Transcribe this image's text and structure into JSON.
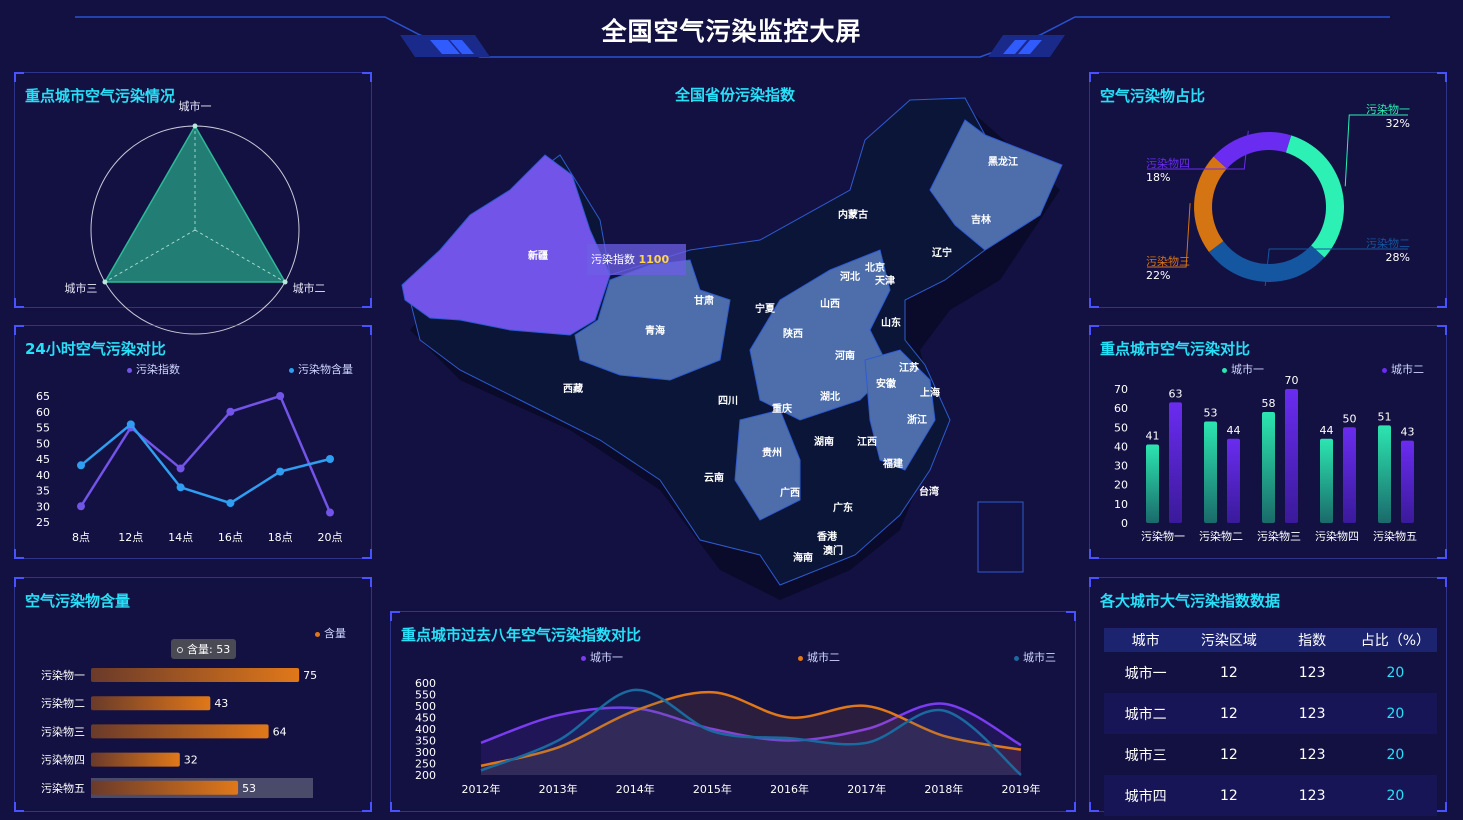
{
  "page_title": "全国空气污染监控大屏",
  "panels": {
    "radar_title": "重点城市空气污染情况",
    "hourly_title": "24小时空气污染对比",
    "content_title": "空气污染物含量",
    "map_title": "全国省份污染指数",
    "years_title": "重点城市过去八年空气污染指数对比",
    "donut_title": "空气污染物占比",
    "compare_title": "重点城市空气污染对比",
    "table_title": "各大城市大气污染指数数据"
  },
  "map": {
    "tooltip_label": "污染指数",
    "tooltip_value": "1100",
    "provinces": [
      "黑龙江",
      "吉林",
      "内蒙古",
      "辽宁",
      "北京",
      "天津",
      "河北",
      "山西",
      "山东",
      "宁夏",
      "甘肃",
      "新疆",
      "青海",
      "陕西",
      "河南",
      "江苏",
      "安徽",
      "上海",
      "西藏",
      "四川",
      "湖北",
      "浙江",
      "重庆",
      "湖南",
      "江西",
      "贵州",
      "福建",
      "云南",
      "广西",
      "广东",
      "台湾",
      "香港",
      "澳门",
      "海南"
    ]
  },
  "table": {
    "headers": [
      "城市",
      "污染区域",
      "指数",
      "占比（%）"
    ],
    "rows": [
      [
        "城市一",
        "12",
        "123",
        "20"
      ],
      [
        "城市二",
        "12",
        "123",
        "20"
      ],
      [
        "城市三",
        "12",
        "123",
        "20"
      ],
      [
        "城市四",
        "12",
        "123",
        "20"
      ]
    ]
  },
  "content_tooltip": "含量: 53",
  "colors": {
    "bg": "#131042",
    "accent": "#27e0f7",
    "map_highlight": "#7254e8",
    "map_mid": "#4d6eab",
    "map_dark": "#0b1538"
  },
  "chart_data": [
    {
      "id": "radar",
      "type": "radar",
      "indicators": [
        "城市一",
        "城市二",
        "城市三"
      ],
      "values": [
        100,
        100,
        100
      ]
    },
    {
      "id": "hourly",
      "type": "line",
      "categories": [
        "8点",
        "12点",
        "14点",
        "16点",
        "18点",
        "20点"
      ],
      "yticks": [
        25,
        30,
        35,
        40,
        45,
        50,
        55,
        60,
        65
      ],
      "ylim": [
        25,
        65
      ],
      "series": [
        {
          "name": "污染指数",
          "color": "#7254e8",
          "values": [
            30,
            55,
            42,
            60,
            65,
            28
          ]
        },
        {
          "name": "污染物含量",
          "color": "#2f9ef0",
          "values": [
            43,
            56,
            36,
            31,
            41,
            45
          ]
        }
      ]
    },
    {
      "id": "content",
      "type": "bar",
      "orientation": "horizontal",
      "categories": [
        "污染物一",
        "污染物二",
        "污染物三",
        "污染物四",
        "污染物五"
      ],
      "series": [
        {
          "name": "含量",
          "values": [
            75,
            43,
            64,
            32,
            53
          ]
        }
      ],
      "xlim": [
        0,
        80
      ]
    },
    {
      "id": "years",
      "type": "area",
      "categories": [
        "2012年",
        "2013年",
        "2014年",
        "2015年",
        "2016年",
        "2017年",
        "2018年",
        "2019年"
      ],
      "yticks": [
        200,
        250,
        300,
        350,
        400,
        450,
        500,
        550,
        600
      ],
      "ylim": [
        200,
        600
      ],
      "series": [
        {
          "name": "城市一",
          "color": "#7a3cf0",
          "values": [
            340,
            460,
            490,
            400,
            350,
            400,
            510,
            330
          ]
        },
        {
          "name": "城市二",
          "color": "#e0781a",
          "values": [
            240,
            320,
            480,
            560,
            450,
            500,
            370,
            310
          ]
        },
        {
          "name": "城市三",
          "color": "#1a6aa0",
          "values": [
            220,
            350,
            570,
            390,
            360,
            340,
            480,
            200
          ]
        }
      ]
    },
    {
      "id": "donut",
      "type": "pie",
      "slices": [
        {
          "label": "污染物一",
          "value": 32,
          "pct": "32%",
          "color": "#2cf0b4"
        },
        {
          "label": "污染物二",
          "value": 28,
          "pct": "28%",
          "color": "#1456a0"
        },
        {
          "label": "污染物三",
          "value": 22,
          "pct": "22%",
          "color": "#d57412"
        },
        {
          "label": "污染物四",
          "value": 18,
          "pct": "18%",
          "color": "#6a2cf0"
        }
      ]
    },
    {
      "id": "compare",
      "type": "bar",
      "categories": [
        "污染物一",
        "污染物二",
        "污染物三",
        "污染物四",
        "污染物五"
      ],
      "yticks": [
        0,
        10,
        20,
        30,
        40,
        50,
        60,
        70
      ],
      "ylim": [
        0,
        70
      ],
      "series": [
        {
          "name": "城市一",
          "color": "#2ce6b0",
          "values": [
            41,
            53,
            58,
            44,
            51
          ]
        },
        {
          "name": "城市二",
          "color": "#6a2cf0",
          "values": [
            63,
            44,
            70,
            50,
            43
          ]
        }
      ]
    }
  ]
}
